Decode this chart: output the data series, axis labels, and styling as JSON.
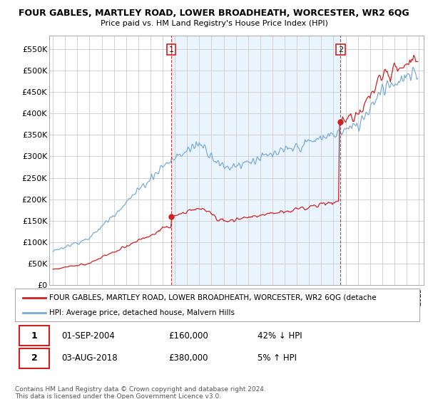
{
  "title": "FOUR GABLES, MARTLEY ROAD, LOWER BROADHEATH, WORCESTER, WR2 6QG",
  "subtitle": "Price paid vs. HM Land Registry's House Price Index (HPI)",
  "ylabel_ticks": [
    "£0",
    "£50K",
    "£100K",
    "£150K",
    "£200K",
    "£250K",
    "£300K",
    "£350K",
    "£400K",
    "£450K",
    "£500K",
    "£550K"
  ],
  "ytick_vals": [
    0,
    50000,
    100000,
    150000,
    200000,
    250000,
    300000,
    350000,
    400000,
    450000,
    500000,
    550000
  ],
  "ylim": [
    0,
    580000
  ],
  "hpi_color": "#7aadd4",
  "hpi_fill_color": "#ddeeff",
  "price_color": "#cc2222",
  "marker1_year": 2004.708,
  "marker1_price": 160000,
  "marker2_year": 2018.583,
  "marker2_price": 380000,
  "legend_line1": "FOUR GABLES, MARTLEY ROAD, LOWER BROADHEATH, WORCESTER, WR2 6QG (detache",
  "legend_line2": "HPI: Average price, detached house, Malvern Hills",
  "background_color": "#ffffff",
  "grid_color": "#cccccc",
  "xstart": 1995,
  "xend": 2025
}
